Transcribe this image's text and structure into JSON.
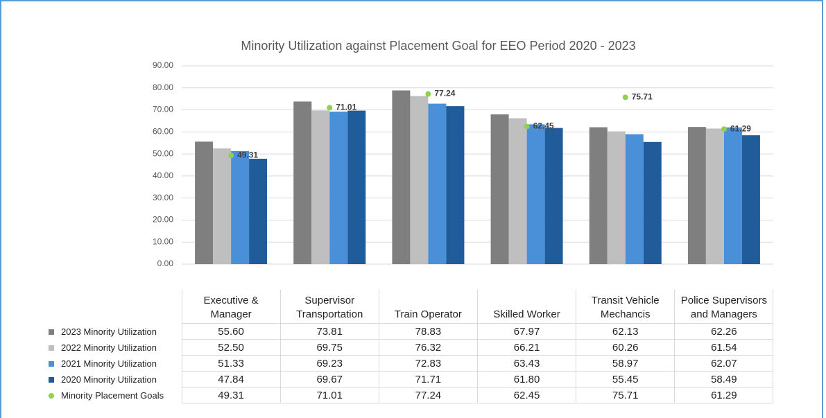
{
  "chart_data": {
    "type": "bar",
    "title": "Minority Utilization against Placement Goal for EEO Period 2020 - 2023",
    "categories": [
      "Executive & Manager",
      "Supervisor Transportation",
      "Train Operator",
      "Skilled Worker",
      "Transit Vehicle Mechancis",
      "Police Supervisors and Managers"
    ],
    "series": [
      {
        "name": "2023 Minority Utilization",
        "color": "#7f7f7f",
        "values": [
          55.6,
          73.81,
          78.83,
          67.97,
          62.13,
          62.26
        ],
        "value_labels": [
          "55.60",
          "73.81",
          "78.83",
          "67.97",
          "62.13",
          "62.26"
        ]
      },
      {
        "name": "2022 Minority Utilization",
        "color": "#bfbfbf",
        "values": [
          52.5,
          69.75,
          76.32,
          66.21,
          60.26,
          61.54
        ],
        "value_labels": [
          "52.50",
          "69.75",
          "76.32",
          "66.21",
          "60.26",
          "61.54"
        ]
      },
      {
        "name": "2021 Minority Utilization",
        "color": "#4a90d9",
        "values": [
          51.33,
          69.23,
          72.83,
          63.43,
          58.97,
          62.07
        ],
        "value_labels": [
          "51.33",
          "69.23",
          "72.83",
          "63.43",
          "58.97",
          "62.07"
        ]
      },
      {
        "name": "2020 Minority Utilization",
        "color": "#1f5c99",
        "values": [
          47.84,
          69.67,
          71.71,
          61.8,
          55.45,
          58.49
        ],
        "value_labels": [
          "47.84",
          "69.67",
          "71.71",
          "61.80",
          "55.45",
          "58.49"
        ]
      },
      {
        "name": "Minority Placement Goals",
        "color": "#92d050",
        "type": "scatter",
        "values": [
          49.31,
          71.01,
          77.24,
          62.45,
          75.71,
          61.29
        ]
      }
    ],
    "ylim": [
      0,
      90
    ],
    "yticks": [
      {
        "value": 0,
        "label": "0.00"
      },
      {
        "value": 10,
        "label": "10.00"
      },
      {
        "value": 20,
        "label": "20.00"
      },
      {
        "value": 30,
        "label": "30.00"
      },
      {
        "value": 40,
        "label": "40.00"
      },
      {
        "value": 50,
        "label": "50.00"
      },
      {
        "value": 60,
        "label": "60.00"
      },
      {
        "value": 70,
        "label": "70.00"
      },
      {
        "value": 80,
        "label": "80.00"
      },
      {
        "value": 90,
        "label": "90.00"
      }
    ],
    "grid": true
  }
}
